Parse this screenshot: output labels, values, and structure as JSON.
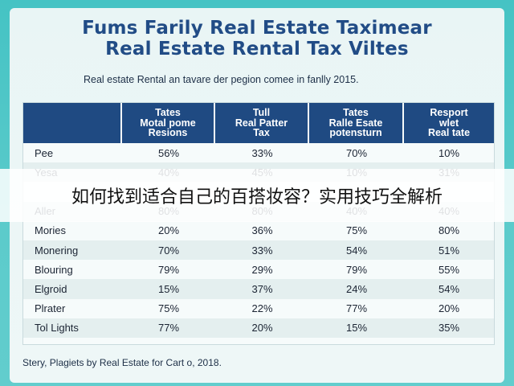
{
  "header": {
    "title_line1": "Fums Farily Real Estate Taximear",
    "title_line2": "Real Estate Rental Tax Viltes",
    "subtitle": "Real estate Rental an tavare der pegion comee in fanlly 2015."
  },
  "footer": {
    "source": "Stery, Plagiets by Real Estate for Cart o, 2018."
  },
  "overlay": {
    "banner_text": "如何找到适合自己的百搭妆容？实用技巧全解析"
  },
  "chart_data": {
    "type": "table",
    "title": "Fums Farily Real Estate Taximear Real Estate Rental Tax Viltes",
    "columns": [
      "",
      "Tates\nMotal pome\nResions",
      "Tull\nReal Patter\nTax",
      "Tates\nRalle Esate\npotensturn",
      "Resport\nwlet\nReal tate"
    ],
    "rows": [
      {
        "label": "Pee",
        "values": [
          "56%",
          "33%",
          "70%",
          "10%"
        ]
      },
      {
        "label": "Yesa",
        "values": [
          "40%",
          "45%",
          "10%",
          "31%"
        ]
      },
      {
        "label": "",
        "values": [
          "",
          "",
          "",
          ""
        ]
      },
      {
        "label": "Aller",
        "values": [
          "80%",
          "80%",
          "40%",
          "40%"
        ]
      },
      {
        "label": "Mories",
        "values": [
          "20%",
          "36%",
          "75%",
          "80%"
        ]
      },
      {
        "label": "Monering",
        "values": [
          "70%",
          "33%",
          "54%",
          "51%"
        ]
      },
      {
        "label": "Blouring",
        "values": [
          "79%",
          "29%",
          "79%",
          "55%"
        ]
      },
      {
        "label": "Elgroid",
        "values": [
          "15%",
          "37%",
          "24%",
          "54%"
        ]
      },
      {
        "label": "Plrater",
        "values": [
          "75%",
          "22%",
          "77%",
          "20%"
        ]
      },
      {
        "label": "Tol Lights",
        "values": [
          "77%",
          "20%",
          "15%",
          "35%"
        ]
      }
    ],
    "colors": {
      "header_bg": "#1f4a82",
      "title": "#214c86",
      "background": "#45c3c4"
    }
  }
}
